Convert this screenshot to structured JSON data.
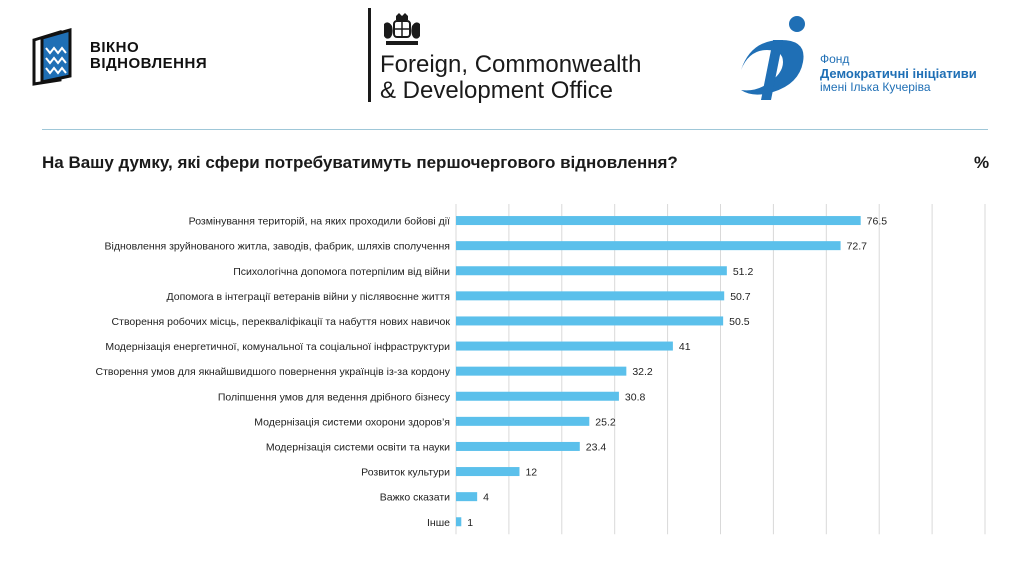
{
  "header": {
    "logo_left": {
      "line1": "ВІКНО",
      "line2": "ВІДНОВЛЕННЯ"
    },
    "logo_center": {
      "line1": "Foreign, Commonwealth",
      "line2": "& Development Office"
    },
    "logo_right": {
      "line1": "Фонд",
      "line2": "Демократичні ініціативи",
      "line3": "імені Ілька Кучеріва"
    }
  },
  "colors": {
    "bar": "#5bc0eb",
    "grid": "#d9d9d9",
    "brand_blue": "#1f6fb5"
  },
  "chart_data": {
    "type": "bar",
    "orientation": "horizontal",
    "title": "На Вашу думку, які сфери потребуватимуть першочергового відновлення?",
    "unit_label": "%",
    "xlim": [
      0,
      100
    ],
    "grid": true,
    "categories": [
      "Розмінування територій, на яких проходили бойові дії",
      "Відновлення зруйнованого житла, заводів, фабрик, шляхів сполучення",
      "Психологічна допомога потерпілим від війни",
      "Допомога в інтеграції ветеранів війни у післявоєнне життя",
      "Створення робочих місць, перекваліфікації та набуття нових навичок",
      "Модернізація енергетичної, комунальної та соціальної інфраструктури",
      "Створення умов для якнайшвидшого повернення українців із-за кордону",
      "Поліпшення умов для ведення дрібного бізнесу",
      "Модернізація системи охорони здоров’я",
      "Модернізація системи освіти та науки",
      "Розвиток культури",
      "Важко сказати",
      "Інше"
    ],
    "values": [
      76.5,
      72.7,
      51.2,
      50.7,
      50.5,
      41,
      32.2,
      30.8,
      25.2,
      23.4,
      12,
      4,
      1
    ]
  }
}
